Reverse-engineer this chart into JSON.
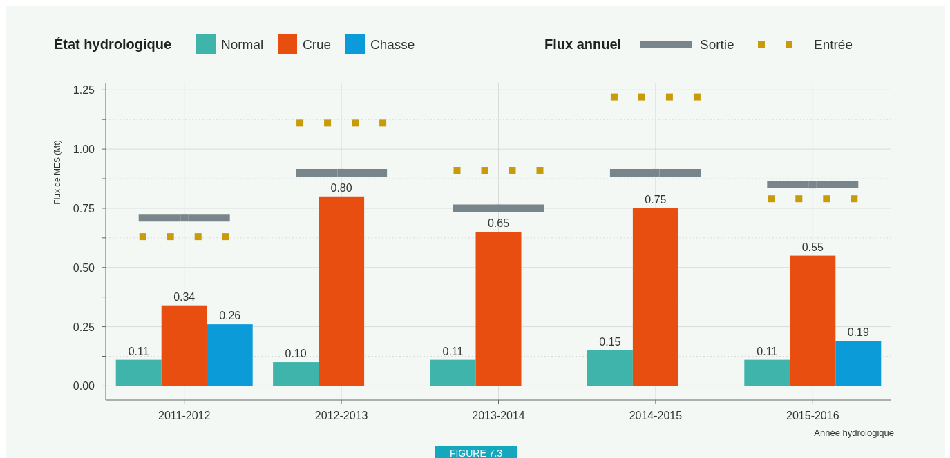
{
  "chart_data": {
    "type": "bar",
    "legend_title": "État hydrologique",
    "xlabel": "Année hydrologique",
    "ylabel": "Flux de MES (Mt)",
    "categories": [
      "2011-2012",
      "2012-2013",
      "2013-2014",
      "2014-2015",
      "2015-2016"
    ],
    "series": [
      {
        "name": "Normal",
        "color": "#3fb4ab",
        "values": [
          0.11,
          0.1,
          0.11,
          0.15,
          0.11
        ],
        "value_labels": [
          "0.11",
          "0.10",
          "0.11",
          "0.15",
          "0.11"
        ]
      },
      {
        "name": "Crue",
        "color": "#e84e10",
        "values": [
          0.34,
          0.8,
          0.65,
          0.75,
          0.55
        ],
        "value_labels": [
          "0.34",
          "0.80",
          "0.65",
          "0.75",
          "0.55"
        ]
      },
      {
        "name": "Chasse",
        "color": "#0a9bd8",
        "values": [
          0.26,
          null,
          null,
          null,
          0.19
        ],
        "value_labels": [
          "0.26",
          null,
          null,
          null,
          "0.19"
        ]
      },
      {
        "name": "Sortie",
        "type": "scatter",
        "line_style": "solid",
        "color": "#78858a",
        "values": [
          0.71,
          0.9,
          0.75,
          0.9,
          0.85
        ]
      },
      {
        "name": "Entrée",
        "type": "scatter",
        "line_style": "dotted",
        "color": "#c89b0a",
        "x": [
          "2011-2012",
          "2011-2012",
          "2011-2012",
          "2011-2012",
          "2012-2013",
          "2012-2013",
          "2012-2013",
          "2012-2013",
          "2013-2014",
          "2013-2014",
          "2013-2014",
          "2013-2014",
          "2014-2015",
          "2014-2015",
          "2014-2015",
          "2014-2015",
          "2015-2016",
          "2015-2016",
          "2015-2016",
          "2015-2016"
        ],
        "values": [
          0.63,
          0.63,
          0.63,
          0.63,
          1.11,
          1.11,
          1.11,
          1.11,
          0.91,
          0.91,
          0.91,
          0.91,
          1.22,
          1.22,
          1.22,
          1.22,
          0.79,
          0.79,
          0.79,
          0.79
        ]
      }
    ],
    "ylim": [
      -0.06,
      1.28
    ],
    "yticks": [
      {
        "value": 0,
        "label": "0.00"
      },
      {
        "value": 0.125,
        "label": null
      },
      {
        "value": 0.25,
        "label": "0.25"
      },
      {
        "value": 0.375,
        "label": null
      },
      {
        "value": 0.5,
        "label": "0.50"
      },
      {
        "value": 0.625,
        "label": null
      },
      {
        "value": 0.75,
        "label": "0.75"
      },
      {
        "value": 0.875,
        "label": null
      },
      {
        "value": 1,
        "label": "1.00"
      },
      {
        "value": 1.125,
        "label": null
      },
      {
        "value": 1.25,
        "label": "1.25"
      }
    ],
    "grid": true,
    "legend": "top",
    "annotations": [
      "Flux annuel",
      "FIGURE 7.3"
    ]
  }
}
